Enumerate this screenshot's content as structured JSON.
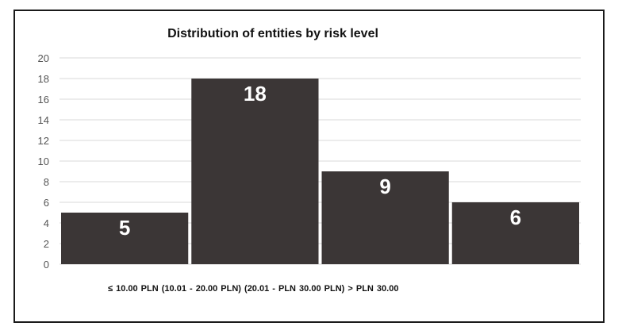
{
  "chart_data": {
    "type": "bar",
    "title": "Distribution of entities by risk level",
    "categories": [
      "≤ 10.00 PLN",
      "(10.01 ‑ 20.00 PLN)",
      "(20.01 ‑ PLN 30.00 PLN)",
      "> PLN 30.00"
    ],
    "values": [
      5,
      18,
      9,
      6
    ],
    "data_labels": [
      "5",
      "18",
      "9",
      "6"
    ],
    "y_ticks": [
      "0",
      "2",
      "4",
      "6",
      "8",
      "10",
      "12",
      "14",
      "16",
      "18",
      "20"
    ],
    "ylim": [
      0,
      20
    ],
    "grid": true,
    "legend": "none",
    "bar_color": "#3b3636",
    "grid_color": "#d9d9d9"
  }
}
